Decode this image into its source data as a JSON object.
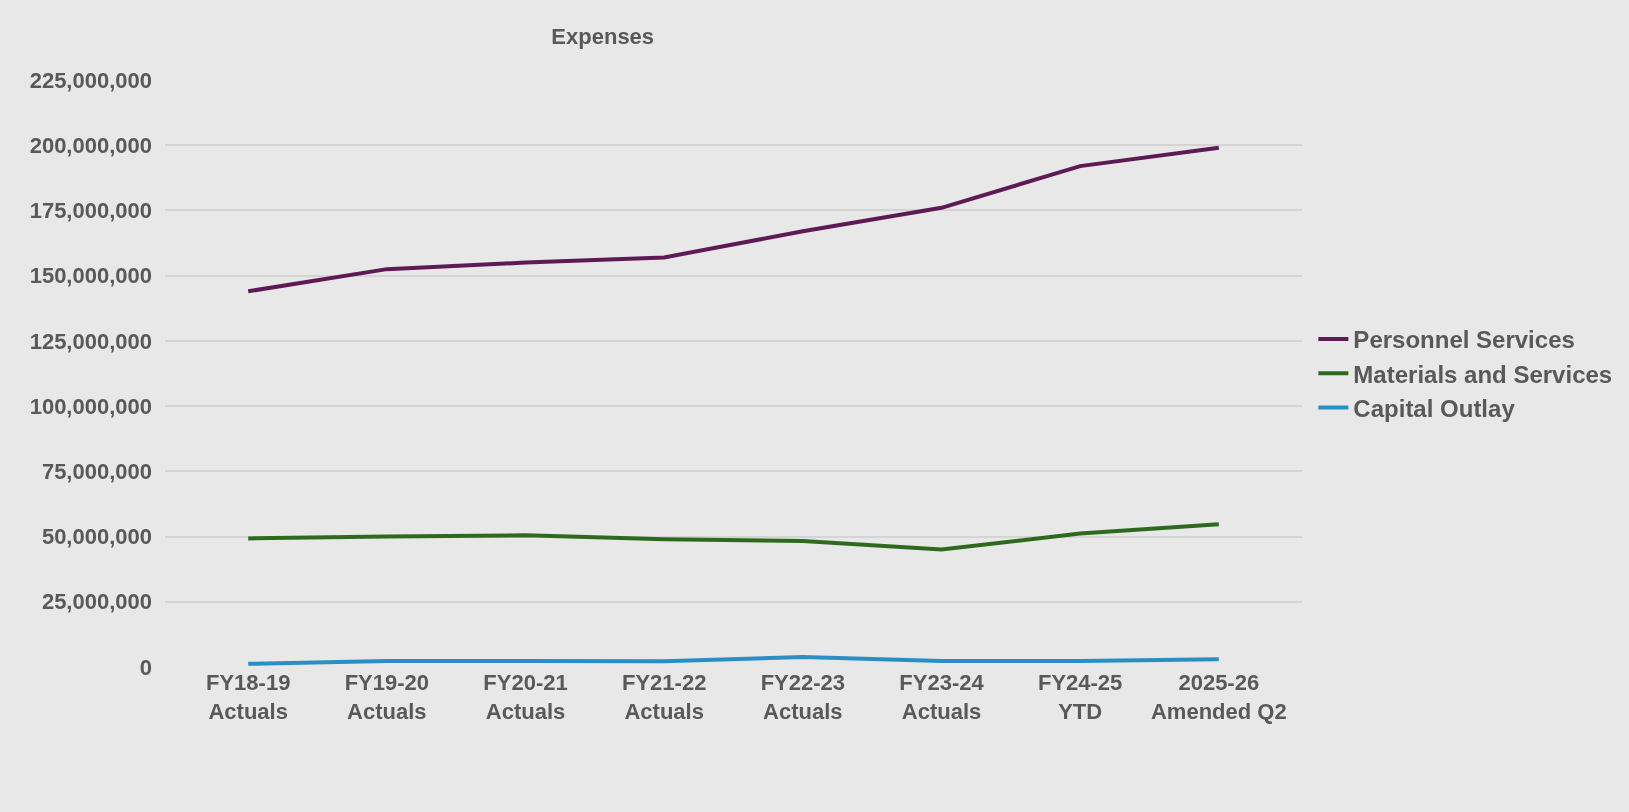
{
  "chart_data": {
    "type": "line",
    "title": "Expenses",
    "categories": [
      "FY18-19 Actuals",
      "FY19-20 Actuals",
      "FY20-21 Actuals",
      "FY21-22 Actuals",
      "FY22-23 Actuals",
      "FY23-24 Actuals",
      "FY24-25 YTD",
      "2025-26 Amended Q2"
    ],
    "series": [
      {
        "name": "Personnel Services",
        "color": "#5e1a55",
        "values": [
          144000000,
          152500000,
          155000000,
          157000000,
          167000000,
          176000000,
          192000000,
          199000000
        ]
      },
      {
        "name": "Materials and Services",
        "color": "#2e6a1e",
        "values": [
          49300000,
          50000000,
          50500000,
          49000000,
          48300000,
          45000000,
          51200000,
          54700000
        ]
      },
      {
        "name": "Capital Outlay",
        "color": "#2b8fc5",
        "values": [
          1200000,
          2300000,
          2300000,
          2200000,
          3800000,
          2300000,
          2300000,
          3000000
        ]
      }
    ],
    "ylim": [
      0,
      225000000
    ],
    "yticks": [
      {
        "value": 0,
        "label": "0"
      },
      {
        "value": 25000000,
        "label": "25,000,000"
      },
      {
        "value": 50000000,
        "label": "50,000,000"
      },
      {
        "value": 75000000,
        "label": "75,000,000"
      },
      {
        "value": 100000000,
        "label": "100,000,000"
      },
      {
        "value": 125000000,
        "label": "125,000,000"
      },
      {
        "value": 150000000,
        "label": "150,000,000"
      },
      {
        "value": 175000000,
        "label": "175,000,000"
      },
      {
        "value": 200000000,
        "label": "200,000,000"
      },
      {
        "value": 225000000,
        "label": "225,000,000"
      }
    ],
    "grid": "y",
    "legend": "right",
    "marker": "none",
    "line_style": "solid"
  }
}
